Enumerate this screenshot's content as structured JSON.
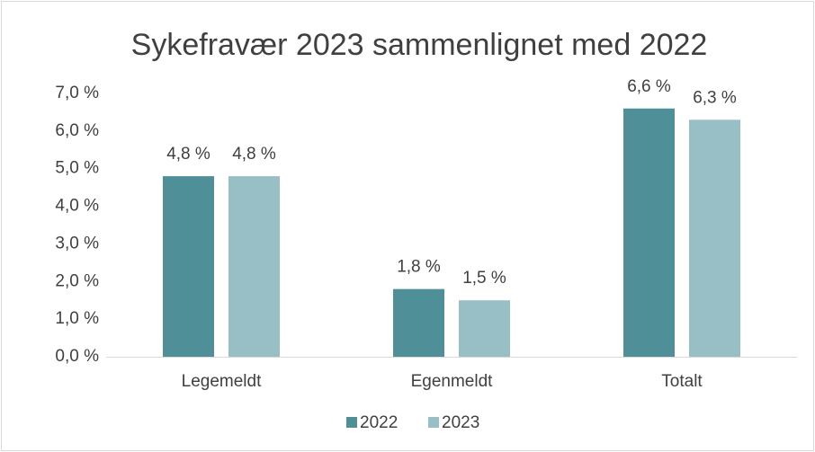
{
  "chart_data": {
    "type": "bar",
    "title": "Sykefravær 2023 sammenlignet med 2022",
    "categories": [
      "Legemeldt",
      "Egenmeldt",
      "Totalt"
    ],
    "series": [
      {
        "name": "2022",
        "color": "#4f8f98",
        "values": [
          4.8,
          1.8,
          6.6
        ],
        "value_labels": [
          "4,8 %",
          "1,8 %",
          "6,6 %"
        ]
      },
      {
        "name": "2023",
        "color": "#98bfc6",
        "values": [
          4.8,
          1.5,
          6.3
        ],
        "value_labels": [
          "4,8 %",
          "1,5 %",
          "6,3 %"
        ]
      }
    ],
    "ylim": [
      0,
      7
    ],
    "yticks": [
      {
        "value": 0,
        "label": "0,0 %"
      },
      {
        "value": 1,
        "label": "1,0 %"
      },
      {
        "value": 2,
        "label": "2,0 %"
      },
      {
        "value": 3,
        "label": "3,0 %"
      },
      {
        "value": 4,
        "label": "4,0 %"
      },
      {
        "value": 5,
        "label": "5,0 %"
      },
      {
        "value": 6,
        "label": "6,0 %"
      },
      {
        "value": 7,
        "label": "7,0 %"
      }
    ],
    "grid": false,
    "legend": "bottom"
  }
}
